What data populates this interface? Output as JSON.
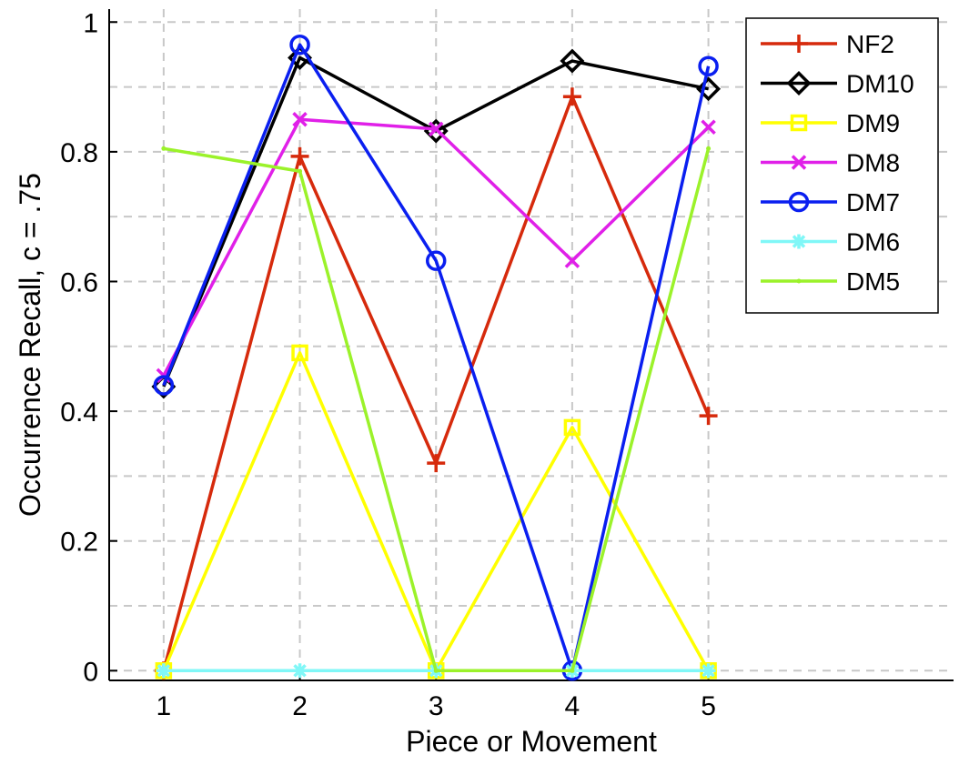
{
  "chart_data": {
    "type": "line",
    "title": "",
    "xlabel": "Piece or Movement",
    "ylabel": "Occurrence Recall, c = .75",
    "x": [
      1,
      2,
      3,
      4,
      5
    ],
    "xlim": [
      0.6,
      6.8
    ],
    "ylim": [
      -0.015,
      1.02
    ],
    "xticks": [
      1,
      2,
      3,
      4,
      5
    ],
    "xtick_labels": [
      "1",
      "2",
      "3",
      "4",
      "5"
    ],
    "yticks": [
      0,
      0.2,
      0.4,
      0.6,
      0.8,
      1
    ],
    "ytick_labels": [
      "0",
      "0.2",
      "0.4",
      "0.6",
      "0.8",
      "1"
    ],
    "y_minor_gridlines": [
      0.1,
      0.3,
      0.5,
      0.7,
      0.9
    ],
    "grid": true,
    "grid_style": "dashed",
    "legend_position": "top-right",
    "series": [
      {
        "name": "NF2",
        "color": "#d62a0c",
        "marker": "plus",
        "values": [
          0,
          0.793,
          0.32,
          0.885,
          0.393
        ]
      },
      {
        "name": "DM10",
        "color": "#000000",
        "marker": "diamond",
        "values": [
          0.438,
          0.945,
          0.832,
          0.94,
          0.897
        ]
      },
      {
        "name": "DM9",
        "color": "#ffff00",
        "marker": "square",
        "values": [
          0,
          0.49,
          0,
          0.375,
          0
        ]
      },
      {
        "name": "DM8",
        "color": "#e020e8",
        "marker": "x",
        "values": [
          0.455,
          0.85,
          0.835,
          0.632,
          0.838
        ]
      },
      {
        "name": "DM7",
        "color": "#0a1ff0",
        "marker": "circle",
        "values": [
          0.44,
          0.965,
          0.632,
          0,
          0.932
        ]
      },
      {
        "name": "DM6",
        "color": "#80f7f7",
        "marker": "star",
        "values": [
          0,
          0,
          0,
          0,
          0
        ]
      },
      {
        "name": "DM5",
        "color": "#9bf22a",
        "marker": "dot",
        "values": [
          0.805,
          0.77,
          0,
          0,
          0.805
        ]
      }
    ]
  }
}
